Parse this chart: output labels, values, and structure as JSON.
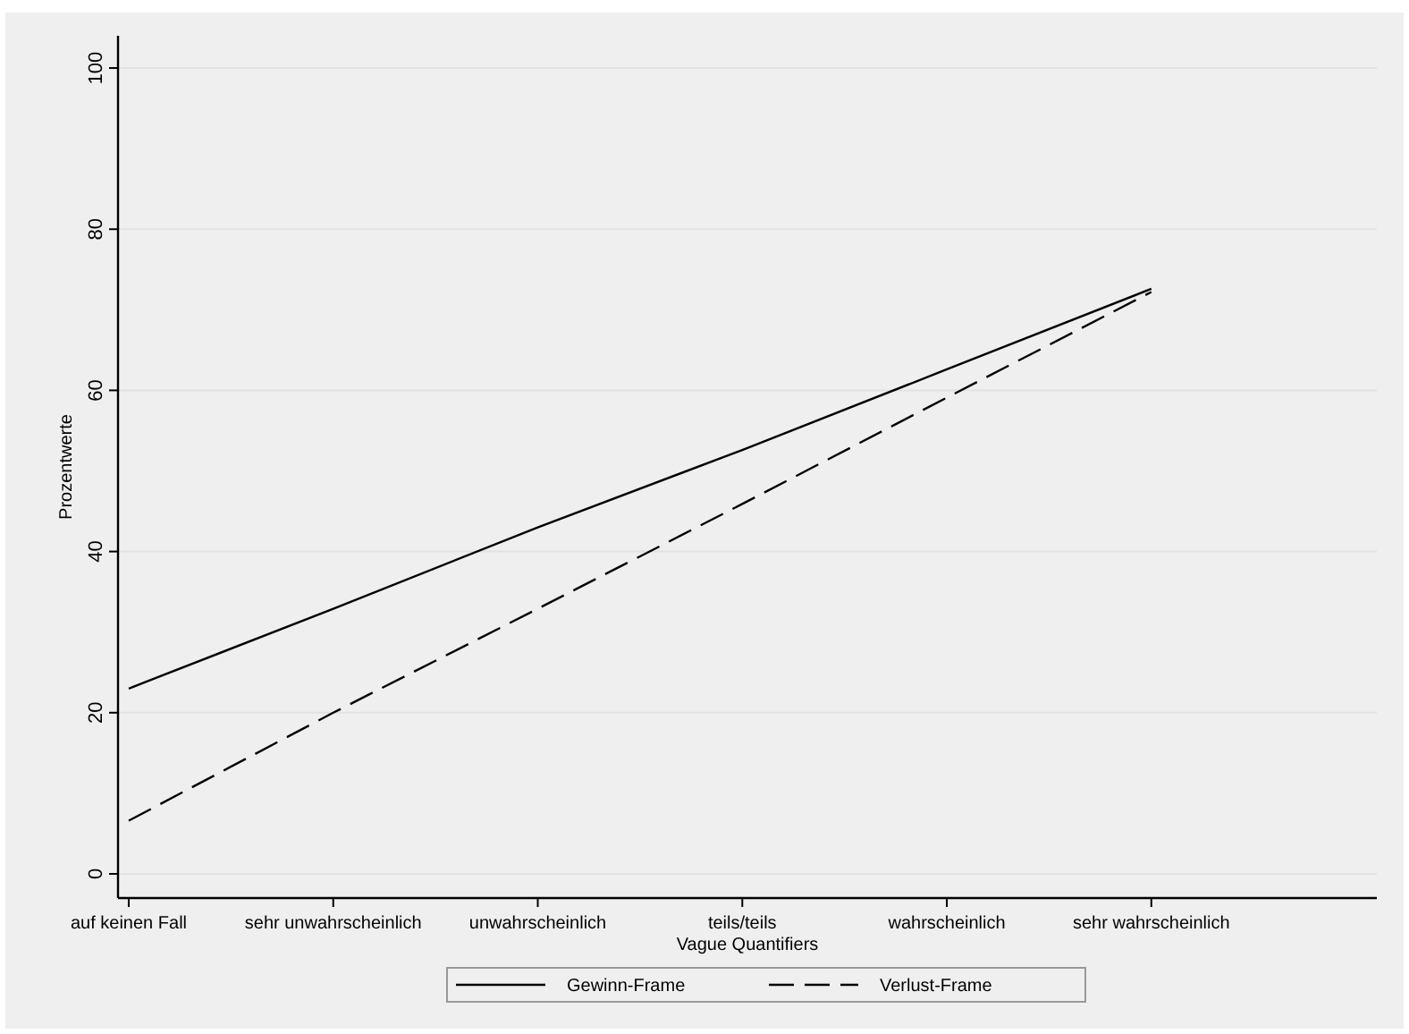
{
  "chart_data": {
    "type": "line",
    "xlabel": "Vague Quantifiers",
    "ylabel": "Prozentwerte",
    "categories": [
      "auf keinen Fall",
      "sehr unwahrscheinlich",
      "unwahrscheinlich",
      "teils/teils",
      "wahrscheinlich",
      "sehr wahrscheinlich"
    ],
    "ylim": [
      -3,
      104
    ],
    "yticks": [
      0,
      20,
      40,
      60,
      80,
      100
    ],
    "grid": "y",
    "legend": "bottom",
    "series": [
      {
        "name": "Gewinn-Frame",
        "color": "#000000",
        "line_style": "solid",
        "values": [
          23,
          32.9,
          43,
          52.6,
          62.6,
          72.6
        ]
      },
      {
        "name": "Verlust-Frame",
        "color": "#000000",
        "line_style": "dashed",
        "values": [
          6.6,
          20,
          32.9,
          45.9,
          59.1,
          72.2
        ]
      }
    ]
  }
}
